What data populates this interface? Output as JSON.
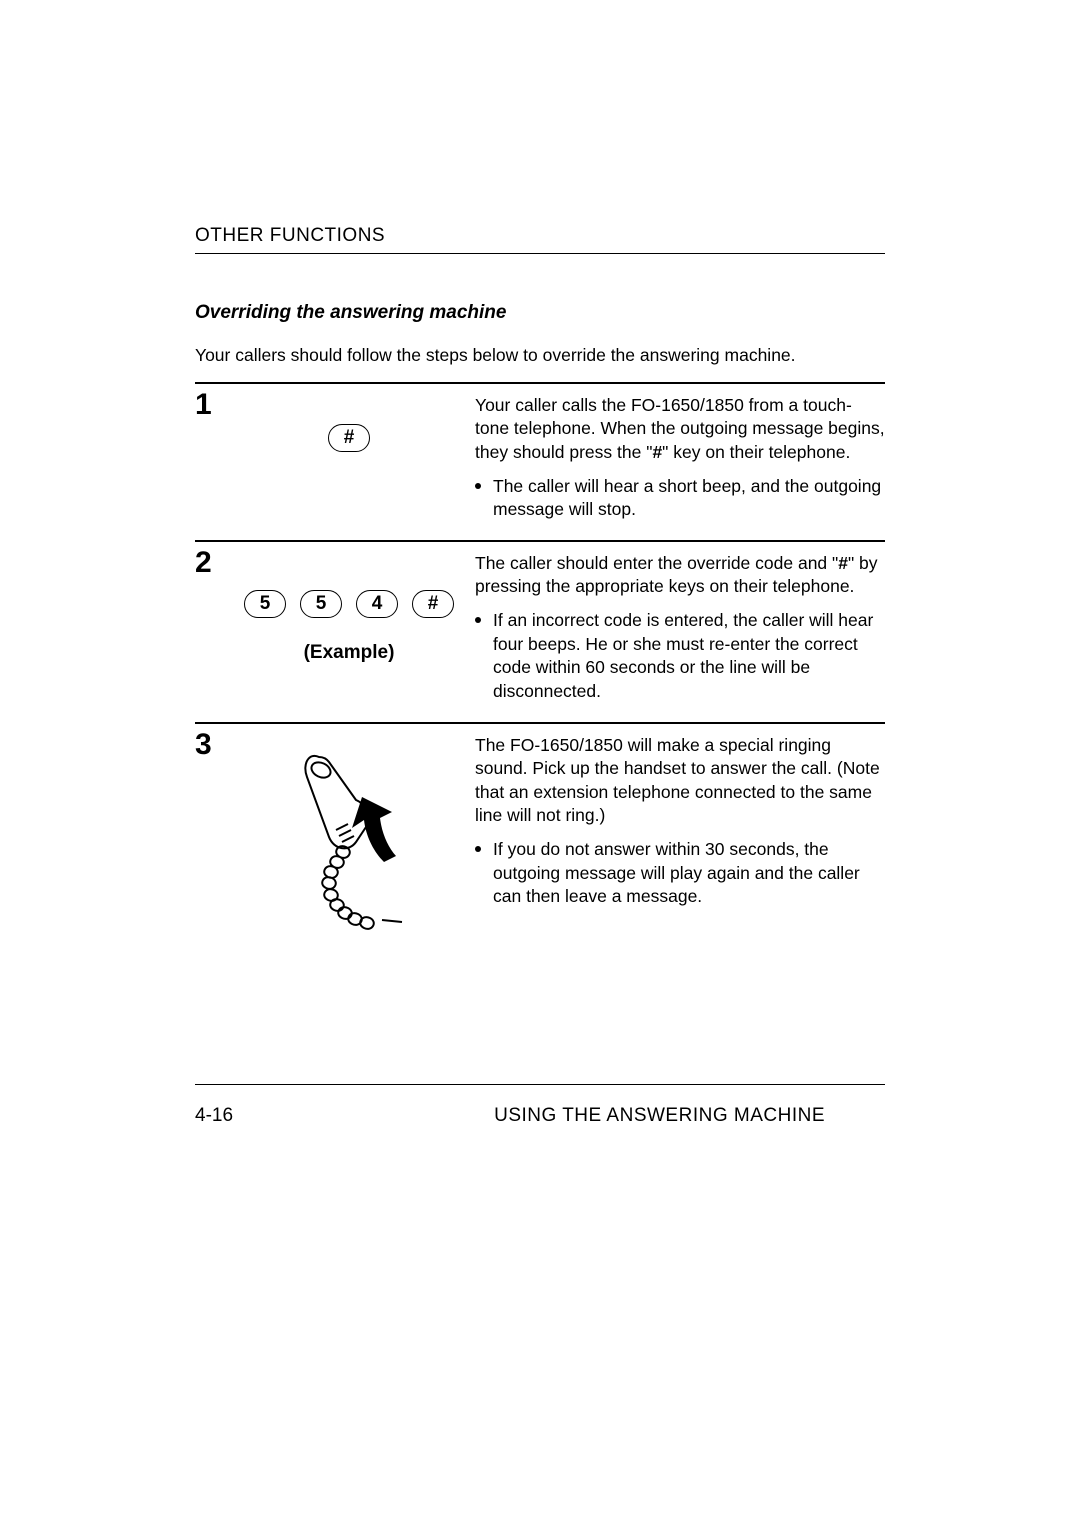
{
  "header": {
    "title": "OTHER FUNCTIONS"
  },
  "section": {
    "title": "Overriding the answering machine"
  },
  "intro": "Your callers should follow the steps below to override the answering machine.",
  "steps": [
    {
      "num": "1",
      "visual": {
        "type": "single-key",
        "key": "#"
      },
      "body_html": "Your caller calls the FO-1650/1850 from a touch-tone telephone. When the outgoing message begins, they should press the \"<b>#</b>\" key on their telephone.",
      "bullets": [
        "The caller will hear a short beep, and the outgoing message will stop."
      ]
    },
    {
      "num": "2",
      "visual": {
        "type": "key-row",
        "keys": [
          "5",
          "5",
          "4",
          "#"
        ],
        "caption": "(Example)"
      },
      "body_html": "The caller should enter the override code and \"<b>#</b>\" by pressing the appropriate keys on their telephone.",
      "bullets": [
        "If an incorrect code is entered, the caller will hear four beeps. He or she must re-enter the correct code within 60 seconds or the line will be disconnected."
      ]
    },
    {
      "num": "3",
      "visual": {
        "type": "handset"
      },
      "body_html": "The FO-1650/1850 will make a special ringing sound. Pick up the handset to answer the call. (Note that an extension telephone connected to the same line will not ring.)",
      "bullets": [
        "If you do not answer within 30 seconds, the outgoing message will play again and the caller can then leave a message."
      ]
    }
  ],
  "footer": {
    "page_num": "4-16",
    "chapter": "USING THE ANSWERING MACHINE"
  },
  "colors": {
    "text": "#000000",
    "background": "#ffffff",
    "rule": "#000000"
  },
  "typography": {
    "base_font": "Arial, Helvetica, sans-serif",
    "body_size_pt": 13,
    "header_size_pt": 14,
    "stepnum_size_pt": 22
  }
}
